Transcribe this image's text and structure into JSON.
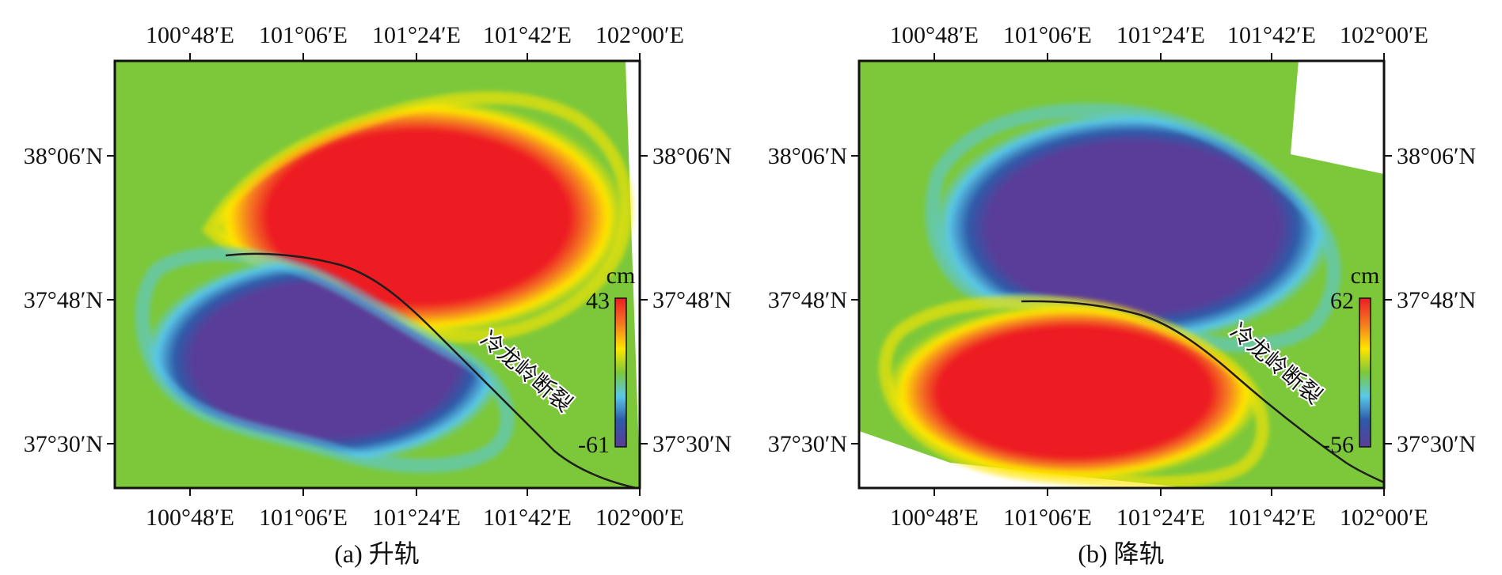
{
  "panels": [
    {
      "id": "a",
      "caption": "(a) 升轨",
      "top_ticks": [
        "100°48′E",
        "101°06′E",
        "101°24′E",
        "101°42′E",
        "102°00′E"
      ],
      "bottom_ticks": [
        "100°48′E",
        "101°06′E",
        "101°24′E",
        "101°42′E",
        "102°00′E"
      ],
      "left_ticks": [
        "38°06′N",
        "37°48′N",
        "37°30′N"
      ],
      "right_ticks": [
        "38°06′N",
        "37°48′N",
        "37°30′N"
      ],
      "colorbar": {
        "unit": "cm",
        "max": "43",
        "min": "-61"
      },
      "fault_label": "冷龙岭断裂",
      "north_lobe": "uplift",
      "south_lobe": "subsidence"
    },
    {
      "id": "b",
      "caption": "(b) 降轨",
      "top_ticks": [
        "100°48′E",
        "101°06′E",
        "101°24′E",
        "101°42′E",
        "102°00′E"
      ],
      "bottom_ticks": [
        "100°48′E",
        "101°06′E",
        "101°24′E",
        "101°42′E",
        "102°00′E"
      ],
      "left_ticks": [
        "38°06′N",
        "37°48′N",
        "37°30′N"
      ],
      "right_ticks": [
        "38°06′N",
        "37°48′N",
        "37°30′N"
      ],
      "colorbar": {
        "unit": "cm",
        "max": "62",
        "min": "-56"
      },
      "fault_label": "冷龙岭断裂",
      "north_lobe": "subsidence",
      "south_lobe": "uplift"
    }
  ],
  "colors": {
    "background_green": "#7cc83a",
    "uplift_red": "#e8262a",
    "subsidence_purple": "#5a3d98",
    "fault_line": "#1e1e1e",
    "colormap": [
      "#ed1c24",
      "#f57e20",
      "#ffe600",
      "#7cc83a",
      "#5ac8e8",
      "#2e5aa8",
      "#5a3d98"
    ]
  }
}
